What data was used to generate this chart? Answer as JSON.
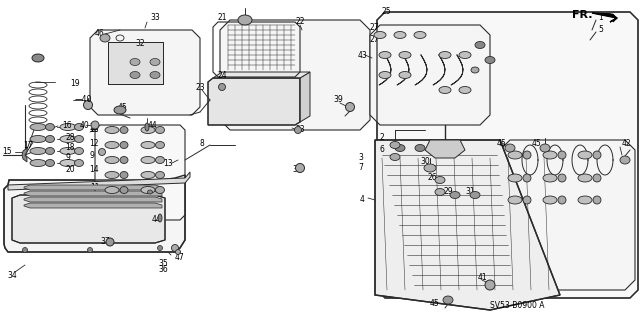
{
  "bg_color": "#ffffff",
  "line_color": "#2a2a2a",
  "text_color": "#000000",
  "fig_width": 6.4,
  "fig_height": 3.19,
  "dpi": 100,
  "watermark": "SV53-B0900 A",
  "fr_label": "FR."
}
